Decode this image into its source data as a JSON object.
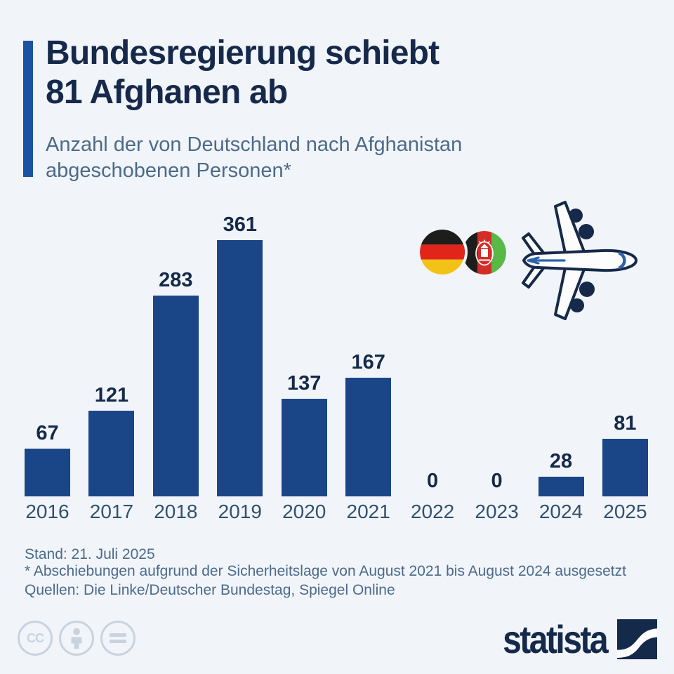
{
  "colors": {
    "background": "#f1f5f9",
    "accent_blue": "#1b53a0",
    "title_navy": "#16294b",
    "subtitle_blue_gray": "#4d6a88",
    "bar_blue": "#1a4687",
    "value_label_navy": "#15294a",
    "year_label_slate": "#31506f",
    "footer_text": "#4c6a8c",
    "license_icon_gray": "#c9d3de",
    "brand_navy": "#15294a",
    "plane_detail_blue": "#2e62a8"
  },
  "header": {
    "title_line1": "Bundesregierung schiebt",
    "title_line2": "81 Afghanen ab",
    "subtitle_line1": "Anzahl der von Deutschland nach Afghanistan",
    "subtitle_line2": "abgeschobenen Personen*"
  },
  "chart_data": {
    "type": "bar",
    "title": "Bundesregierung schiebt 81 Afghanen ab",
    "subtitle": "Anzahl der von Deutschland nach Afghanistan abgeschobenen Personen*",
    "categories": [
      "2016",
      "2017",
      "2018",
      "2019",
      "2020",
      "2021",
      "2022",
      "2023",
      "2024",
      "2025"
    ],
    "values": [
      67,
      121,
      283,
      361,
      137,
      167,
      0,
      0,
      28,
      81
    ],
    "xlabel": "",
    "ylabel": "",
    "ylim": [
      0,
      361
    ],
    "grid": false,
    "legend": "none",
    "value_labels": true,
    "bar_color": "#1a4687"
  },
  "illustration": {
    "flag_left": "german-flag",
    "flag_right": "afghan-flag",
    "plane": "airplane"
  },
  "footer": {
    "stand": "Stand: 21. Juli 2025",
    "footnote": "* Abschiebungen aufgrund der Sicherheitslage von August 2021 bis August 2024 ausgesetzt",
    "sources": "Quellen: Die Linke/Deutscher Bundestag, Spiegel Online"
  },
  "license": {
    "cc_label": "CC"
  },
  "branding": {
    "logo_text": "statista"
  }
}
